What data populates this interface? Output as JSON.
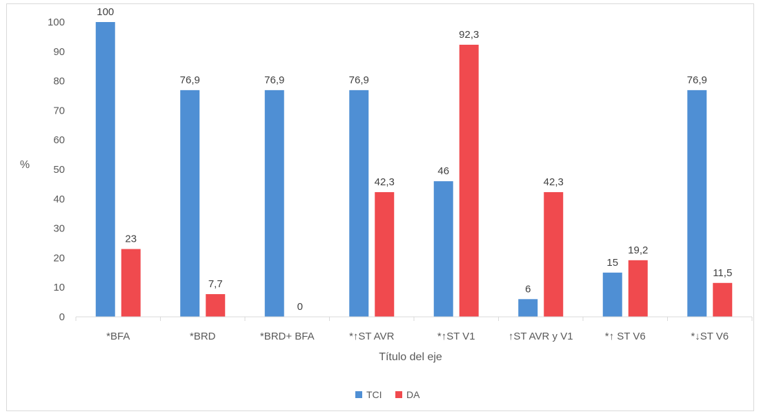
{
  "chart_data": {
    "type": "bar",
    "categories": [
      "*BFA",
      "*BRD",
      "*BRD+ BFA",
      "*↑ST AVR",
      "*↑ST V1",
      "↑ST AVR y V1",
      "*↑ ST V6",
      "*↓ST V6"
    ],
    "series": [
      {
        "name": "TCI",
        "color": "#4f8fd4",
        "values": [
          100,
          76.9,
          76.9,
          76.9,
          46,
          6,
          15,
          76.9
        ],
        "labels": [
          "100",
          "76,9",
          "76,9",
          "76,9",
          "46",
          "6",
          "15",
          "76,9"
        ]
      },
      {
        "name": "DA",
        "color": "#f04a4e",
        "values": [
          23,
          7.7,
          0,
          42.3,
          92.3,
          42.3,
          19.2,
          11.5
        ],
        "labels": [
          "23",
          "7,7",
          "0",
          "42,3",
          "92,3",
          "42,3",
          "19,2",
          "11,5"
        ]
      }
    ],
    "title": "",
    "xlabel": "Título del eje",
    "ylabel": "%",
    "ylim": [
      0,
      100
    ],
    "yticks": [
      0,
      10,
      20,
      30,
      40,
      50,
      60,
      70,
      80,
      90,
      100
    ],
    "grid": false,
    "legend_position": "bottom"
  }
}
